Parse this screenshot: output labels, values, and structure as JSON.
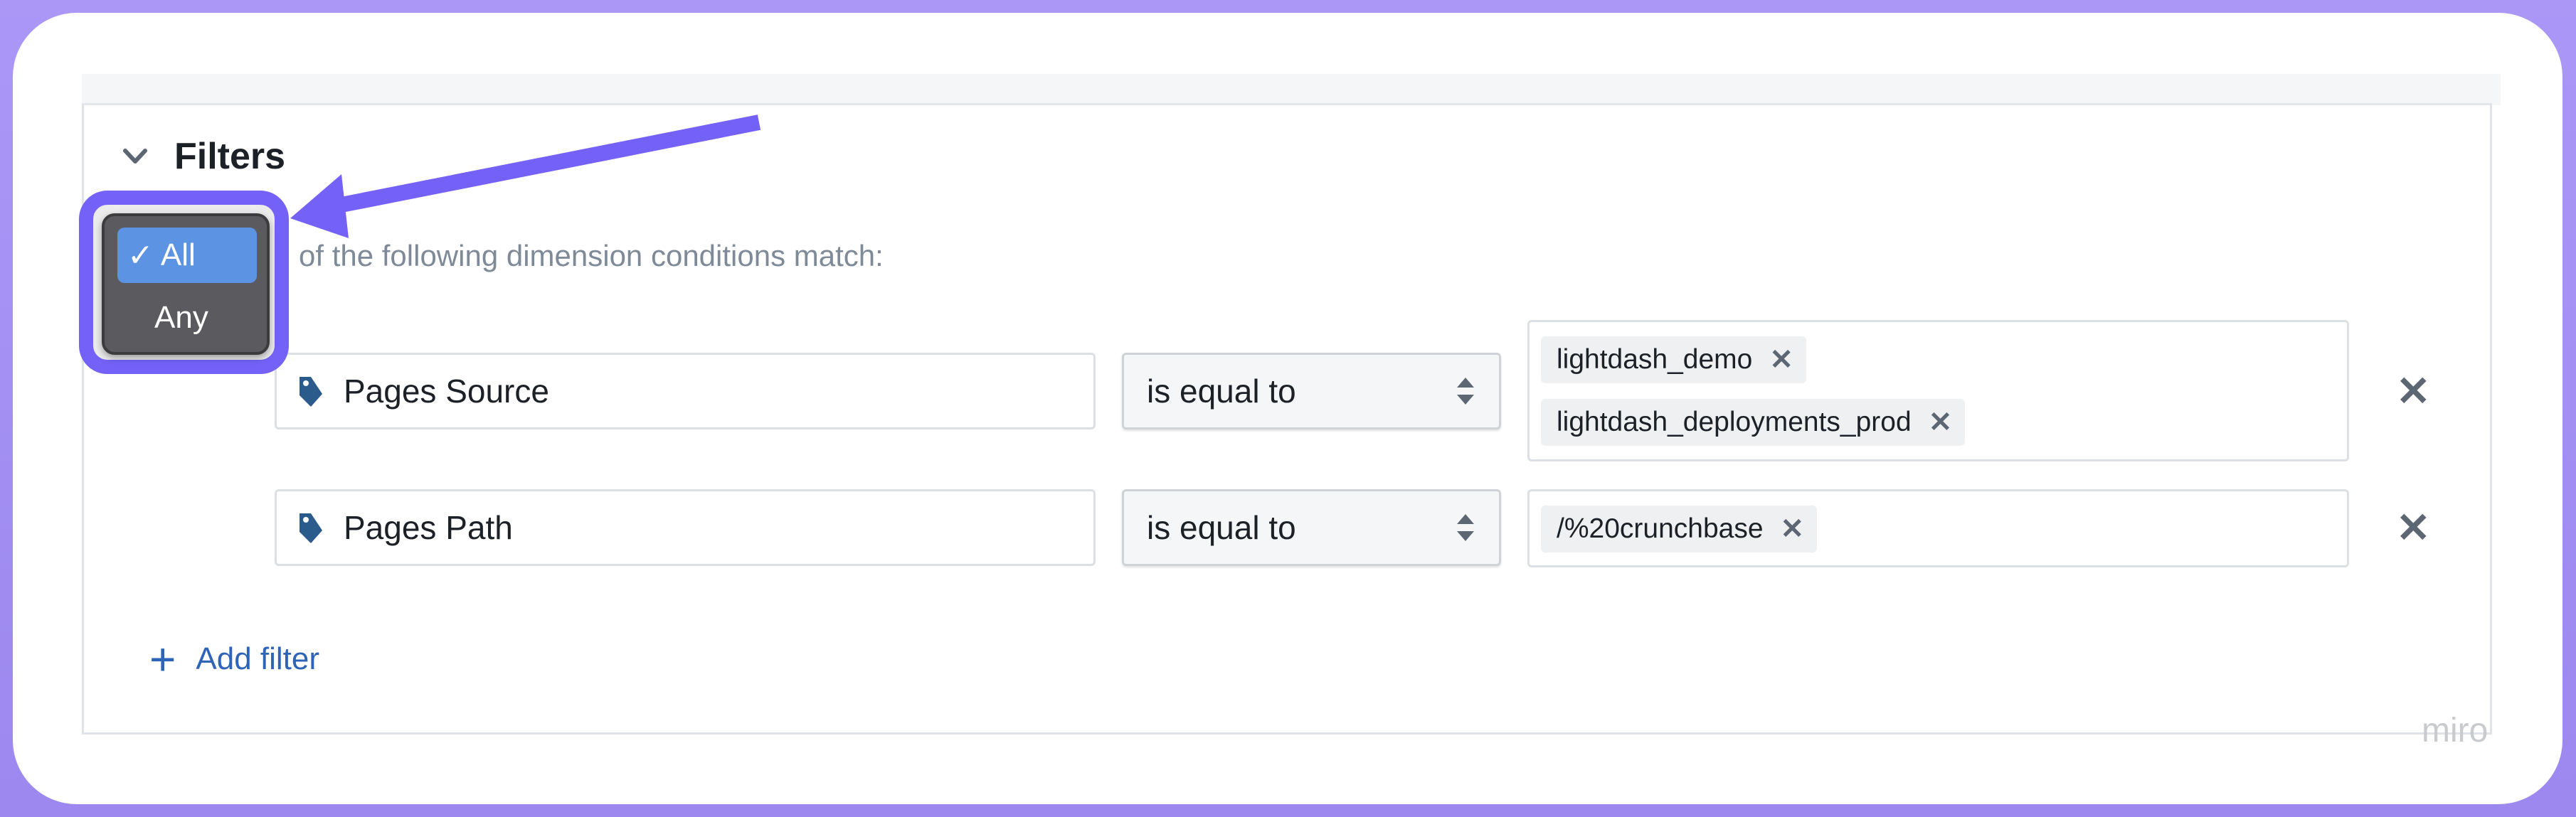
{
  "filters": {
    "title": "Filters",
    "match_suffix": "of the following dimension conditions match:",
    "match_menu": {
      "options": [
        {
          "label": "All",
          "selected": true,
          "check": "✓"
        },
        {
          "label": "Any",
          "selected": false
        }
      ]
    },
    "rules": [
      {
        "field": "Pages Source",
        "field_icon": "tag-icon",
        "operator": "is equal to",
        "values": [
          "lightdash_demo",
          "lightdash_deployments_prod"
        ]
      },
      {
        "field": "Pages Path",
        "field_icon": "tag-icon",
        "operator": "is equal to",
        "values": [
          "/%20crunchbase"
        ]
      }
    ],
    "add_label": "Add filter",
    "remove_glyph": "✕"
  },
  "watermark": "miro",
  "colors": {
    "highlight": "#7462f8",
    "accent": "#2e64b7",
    "selected_option": "#5c93e3",
    "tag_icon": "#2b5b8c"
  }
}
